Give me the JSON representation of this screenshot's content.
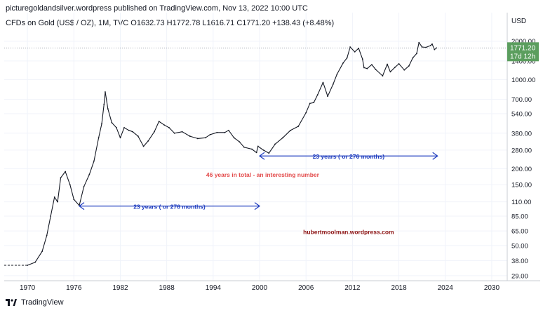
{
  "header": {
    "publisher": "picturegoldandsilver.wordpress published on TradingView.com, Nov 13, 2022 10:00 UTC",
    "ohlc": "CFDs on Gold (US$ / OZ), 1M, TVC  O1632.73  H1772.78  L1616.71  C1771.20  +138.43 (+8.48%)"
  },
  "footer": {
    "brand": "TradingView"
  },
  "chart_data": {
    "type": "line",
    "title": "CFDs on Gold (US$ / OZ), 1M, TVC",
    "ylabel": "USD",
    "yscale": "log",
    "xlim": [
      1967,
      2032
    ],
    "ylim": [
      26.5,
      2600
    ],
    "x_ticks": [
      1970,
      1976,
      1982,
      1988,
      1994,
      2000,
      2006,
      2012,
      2018,
      2024,
      2030
    ],
    "x_tick_labels": [
      "1970",
      "1976",
      "1982",
      "1988",
      "1994",
      "2000",
      "2006",
      "2012",
      "2018",
      "2024",
      "2030"
    ],
    "y_ticks": [
      29,
      38,
      50,
      65,
      85,
      110,
      150,
      200,
      280,
      380,
      540,
      700,
      1000,
      1400,
      2000
    ],
    "y_tick_labels": [
      "29.00",
      "38.00",
      "50.00",
      "65.00",
      "85.00",
      "110.00",
      "150.00",
      "200.00",
      "280.00",
      "380.00",
      "540.00",
      "700.00",
      "1000.00",
      "1400.00",
      "2000.00"
    ],
    "last_price": {
      "value": 1771.2,
      "label": "1771.20",
      "countdown": "17d 12h",
      "color": "#5b9e5e"
    },
    "series": [
      {
        "color": "#131722",
        "x": [
          1970,
          1971,
          1971.9,
          1972.5,
          1973,
          1973.5,
          1973.9,
          1974.3,
          1974.9,
          1975.5,
          1976,
          1976.7,
          1977.3,
          1978,
          1978.6,
          1979.2,
          1979.6,
          1979.9,
          1980.05,
          1980.4,
          1980.9,
          1981.5,
          1982.0,
          1982.5,
          1983.1,
          1983.6,
          1984.3,
          1985.0,
          1985.6,
          1986.4,
          1987.0,
          1987.7,
          1988.3,
          1989.0,
          1990.0,
          1991.0,
          1992.0,
          1993.0,
          1993.6,
          1994.5,
          1995.5,
          1996.0,
          1996.7,
          1997.4,
          1998.0,
          1999.0,
          1999.6,
          1999.8,
          2000.5,
          2001.2,
          2002.0,
          2003.0,
          2004.0,
          2005.0,
          2006.0,
          2006.5,
          2007.0,
          2007.5,
          2008.2,
          2008.8,
          2009.5,
          2010.0,
          2010.8,
          2011.3,
          2011.7,
          2012.3,
          2012.8,
          2013.3,
          2013.5,
          2013.9,
          2014.5,
          2015.0,
          2015.9,
          2016.5,
          2016.9,
          2017.5,
          2018.0,
          2018.7,
          2019.3,
          2019.8,
          2020.3,
          2020.6,
          2021.0,
          2021.5,
          2022.1,
          2022.3,
          2022.6,
          2022.85
        ],
        "values": [
          35,
          37,
          45,
          60,
          85,
          120,
          110,
          170,
          190,
          150,
          115,
          103,
          145,
          180,
          230,
          350,
          450,
          640,
          800,
          590,
          460,
          420,
          350,
          420,
          400,
          390,
          360,
          300,
          330,
          390,
          470,
          440,
          420,
          380,
          390,
          360,
          345,
          350,
          370,
          385,
          385,
          400,
          350,
          325,
          295,
          285,
          268,
          300,
          280,
          265,
          312,
          350,
          400,
          430,
          550,
          650,
          660,
          760,
          950,
          740,
          920,
          1100,
          1350,
          1480,
          1800,
          1650,
          1760,
          1450,
          1240,
          1220,
          1310,
          1200,
          1070,
          1320,
          1150,
          1250,
          1330,
          1190,
          1280,
          1480,
          1600,
          1950,
          1800,
          1790,
          1850,
          1900,
          1720,
          1771
        ]
      }
    ],
    "annotations": [
      {
        "text": "23 years ( or 276 months)",
        "x_start": 1976.7,
        "x_end": 2000,
        "y": 102,
        "color": "#1f3dbf"
      },
      {
        "text": "23 years ( or 276 months)",
        "x_start": 2000,
        "x_end": 2023,
        "y": 252,
        "color": "#1f3dbf"
      },
      {
        "text": "46 years in total - an interesting number",
        "x": 2000.4,
        "y": 180,
        "color": "#e34b4b"
      },
      {
        "text": "hubertmoolman.wordpress.com",
        "x": 2011.5,
        "y": 64,
        "color": "#8b1010"
      }
    ],
    "grid": true,
    "legend": "none"
  }
}
